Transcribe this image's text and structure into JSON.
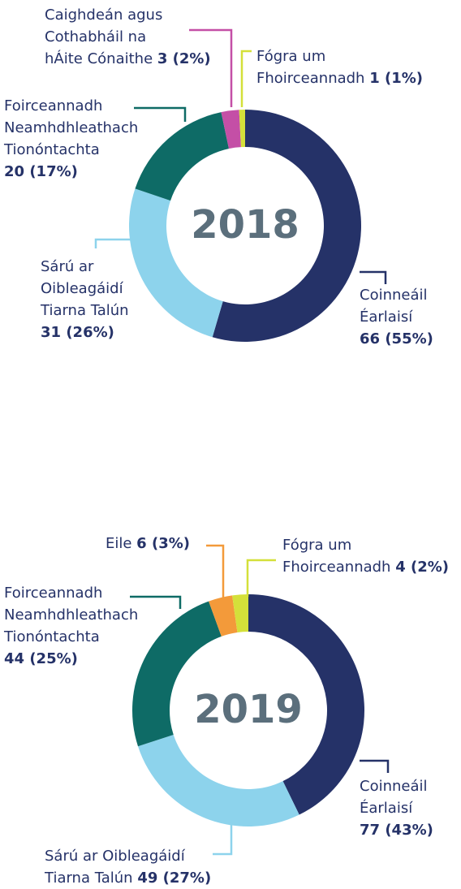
{
  "chart_data": [
    {
      "type": "pie",
      "title": "2018",
      "categories": [
        "Coinneáil\nÉarlaisí\n",
        "Sárú ar\nOibleagáidí\nTiarna Talún\n",
        "Foirceannadh\nNeamhdhleathach\nTionóntachta\n",
        "Caighdeán agus\nCothabháil na\nhÁite Cónaithe ",
        "Fógra um\nFhoirceannadh "
      ],
      "values": [
        66,
        31,
        20,
        3,
        1
      ],
      "value_labels": [
        "66 (55%)",
        "31 (26%)",
        "20 (17%)",
        "3 (2%)",
        "1 (1%)"
      ],
      "colors": [
        "#253268",
        "#8dd3ec",
        "#0e6b66",
        "#c44fa6",
        "#d4e03a"
      ]
    },
    {
      "type": "pie",
      "title": "2019",
      "categories": [
        "Coinneáil\nÉarlaisí\n",
        "Sárú ar Oibleagáidí\nTiarna Talún ",
        "Foirceannadh\nNeamhdhleathach\nTionóntachta\n",
        "Eile ",
        "Fógra um\nFhoirceannadh "
      ],
      "values": [
        77,
        49,
        44,
        6,
        4
      ],
      "value_labels": [
        "77 (43%)",
        "49 (27%)",
        "44 (25%)",
        "6 (3%)",
        "4 (2%)"
      ],
      "colors": [
        "#253268",
        "#8dd3ec",
        "#0e6b66",
        "#f39a3a",
        "#d4e03a"
      ]
    }
  ]
}
